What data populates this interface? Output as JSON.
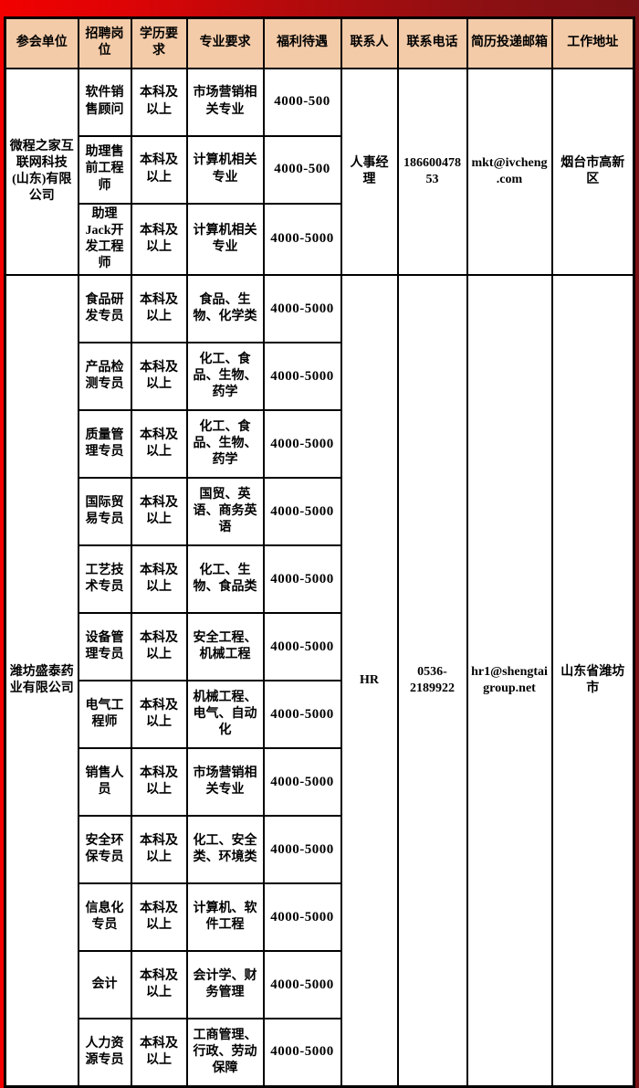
{
  "header": {
    "columns": [
      {
        "key": "company",
        "label": "参会单位"
      },
      {
        "key": "position",
        "label": "招聘岗位"
      },
      {
        "key": "education",
        "label": "学历要求"
      },
      {
        "key": "major",
        "label": "专业要求"
      },
      {
        "key": "salary",
        "label": "福利待遇"
      },
      {
        "key": "contact",
        "label": "联系人"
      },
      {
        "key": "phone",
        "label": "联系电话"
      },
      {
        "key": "email",
        "label": "简历投递邮箱"
      },
      {
        "key": "address",
        "label": "工作地址"
      }
    ]
  },
  "companies": [
    {
      "name": "微程之家互联网科技(山东)有限公司",
      "contact": "人事经理",
      "phone": "18660047853",
      "email": "mkt@ivcheng.com",
      "address": "烟台市高新区",
      "positions": [
        {
          "title": "软件销售顾问",
          "education": "本科及以上",
          "major": "市场营销相关专业",
          "salary": "4000-500"
        },
        {
          "title": "助理售前工程师",
          "education": "本科及以上",
          "major": "计算机相关专业",
          "salary": "4000-500"
        },
        {
          "title": "助理Jack开发工程师",
          "education": "本科及以上",
          "major": "计算机相关专业",
          "salary": "4000-5000"
        }
      ]
    },
    {
      "name": "潍坊盛泰药业有限公司",
      "contact": "HR",
      "phone": "0536-2189922",
      "email": "hr1@shengtaigroup.net",
      "address": "山东省潍坊市",
      "positions": [
        {
          "title": "食品研发专员",
          "education": "本科及以上",
          "major": "食品、生物、化学类",
          "salary": "4000-5000"
        },
        {
          "title": "产品检测专员",
          "education": "本科及以上",
          "major": "化工、食品、生物、药学",
          "salary": "4000-5000"
        },
        {
          "title": "质量管理专员",
          "education": "本科及以上",
          "major": "化工、食品、生物、药学",
          "salary": "4000-5000"
        },
        {
          "title": "国际贸易专员",
          "education": "本科及以上",
          "major": "国贸、英语、商务英语",
          "salary": "4000-5000"
        },
        {
          "title": "工艺技术专员",
          "education": "本科及以上",
          "major": "化工、生物、食品类",
          "salary": "4000-5000"
        },
        {
          "title": "设备管理专员",
          "education": "本科及以上",
          "major": "安全工程、机械工程",
          "salary": "4000-5000"
        },
        {
          "title": "电气工程师",
          "education": "本科及以上",
          "major": "机械工程、电气、自动化",
          "salary": "4000-5000"
        },
        {
          "title": "销售人员",
          "education": "本科及以上",
          "major": "市场营销相关专业",
          "salary": "4000-5000"
        },
        {
          "title": "安全环保专员",
          "education": "本科及以上",
          "major": "化工、安全类、环境类",
          "salary": "4000-5000"
        },
        {
          "title": "信息化专员",
          "education": "本科及以上",
          "major": "计算机、软件工程",
          "salary": "4000-5000"
        },
        {
          "title": "会计",
          "education": "本科及以上",
          "major": "会计学、财务管理",
          "salary": "4000-5000"
        },
        {
          "title": "人力资源专员",
          "education": "本科及以上",
          "major": "工商管理、行政、劳动保障",
          "salary": "4000-5000"
        }
      ]
    }
  ],
  "colors": {
    "frame_red_bright": "#f20000",
    "frame_red_dark": "#7a1114",
    "header_background": "#f4cba8",
    "cell_background": "#ffffff",
    "border": "#000000"
  }
}
